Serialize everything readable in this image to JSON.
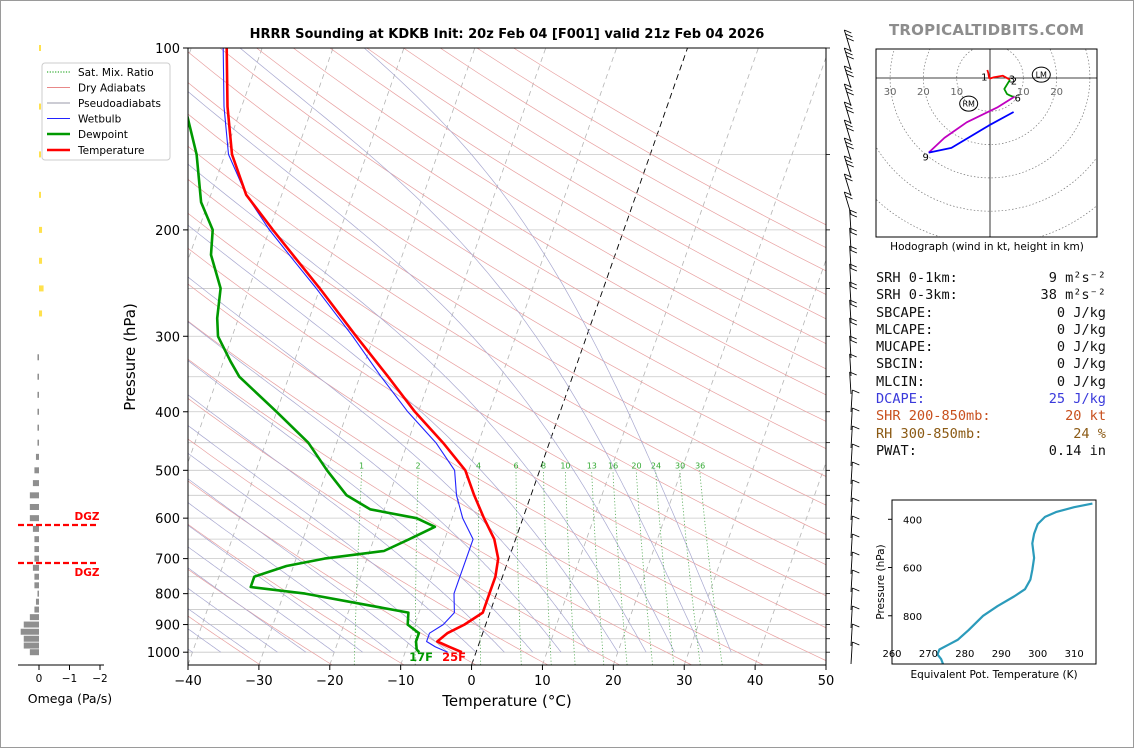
{
  "brand": "TROPICALTIDBITS.COM",
  "title": "HRRR Sounding at KDKB Init: 20z Feb 04 [F001] valid 21z Feb 04 2026",
  "skewt": {
    "xlabel": "Temperature (°C)",
    "ylabel": "Pressure (hPa)",
    "xticks": [
      "−40",
      "−30",
      "−20",
      "−10",
      "0",
      "10",
      "20",
      "30",
      "40",
      "50"
    ],
    "yticks": [
      "100",
      "200",
      "300",
      "400",
      "500",
      "600",
      "700",
      "800",
      "900",
      "1000"
    ],
    "legend": [
      "Sat. Mix. Ratio",
      "Dry Adiabats",
      "Pseudoadiabats",
      "Wetbulb",
      "Dewpoint",
      "Temperature"
    ],
    "mixing_ratio_labels": [
      "1",
      "2",
      "4",
      "6",
      "8",
      "10",
      "13",
      "16",
      "20",
      "24",
      "30",
      "36"
    ],
    "surface_temp_label": "25F",
    "surface_dewpoint_label": "17F"
  },
  "omega": {
    "xlabel": "Omega (Pa/s)",
    "xticks": [
      "0",
      "−1",
      "−2"
    ],
    "dgz_labels": [
      "DGZ",
      "DGZ"
    ]
  },
  "hodograph": {
    "caption": "Hodograph (wind in kt, height in km)",
    "ring_labels": [
      "30",
      "20",
      "10",
      "10",
      "20"
    ],
    "markers": [
      "LM",
      "RM"
    ],
    "height_labels": [
      "1",
      "2",
      "3",
      "6",
      "9"
    ]
  },
  "stats": [
    {
      "label": "SRH 0-1km:",
      "value": "9 m²s⁻²",
      "color": "#111111"
    },
    {
      "label": "SRH 0-3km:",
      "value": "38 m²s⁻²",
      "color": "#111111"
    },
    {
      "label": "SBCAPE:",
      "value": "0 J/kg",
      "color": "#111111"
    },
    {
      "label": "MLCAPE:",
      "value": "0 J/kg",
      "color": "#111111"
    },
    {
      "label": "MUCAPE:",
      "value": "0 J/kg",
      "color": "#111111"
    },
    {
      "label": "SBCIN:",
      "value": "0 J/kg",
      "color": "#111111"
    },
    {
      "label": "MLCIN:",
      "value": "0 J/kg",
      "color": "#111111"
    },
    {
      "label": "DCAPE:",
      "value": "25 J/kg",
      "color": "#3a3adb"
    },
    {
      "label": "SHR 200-850mb:",
      "value": "20 kt",
      "color": "#c8501e"
    },
    {
      "label": "RH 300-850mb:",
      "value": "24 %",
      "color": "#8b5a14"
    },
    {
      "label": "PWAT:",
      "value": "0.14 in",
      "color": "#111111"
    }
  ],
  "theta_e": {
    "ylabel": "Pressure (hPa)",
    "xlabel": "Equivalent Pot. Temperature (K)",
    "yticks": [
      "400",
      "600",
      "800"
    ],
    "xticks": [
      "260",
      "270",
      "280",
      "290",
      "300",
      "310"
    ]
  },
  "chart_data": [
    {
      "type": "line",
      "title": "HRRR Sounding at KDKB Init: 20z Feb 04 [F001] valid 21z Feb 04 2026",
      "xlabel": "Temperature (°C)",
      "ylabel": "Pressure (hPa)",
      "xlim": [
        -40,
        50
      ],
      "ylim": [
        1050,
        100
      ],
      "y_scale": "log",
      "skew": true,
      "grid": true,
      "legend_position": "top-left",
      "series": [
        {
          "name": "Temperature",
          "color": "#ff0000",
          "points": [
            [
              1000,
              -2
            ],
            [
              980,
              -4
            ],
            [
              960,
              -6
            ],
            [
              930,
              -5
            ],
            [
              900,
              -3
            ],
            [
              860,
              -1
            ],
            [
              800,
              -1
            ],
            [
              750,
              -1
            ],
            [
              700,
              -1.5
            ],
            [
              650,
              -3
            ],
            [
              600,
              -5.5
            ],
            [
              550,
              -8
            ],
            [
              500,
              -10.5
            ],
            [
              450,
              -15
            ],
            [
              400,
              -20.5
            ],
            [
              350,
              -26
            ],
            [
              300,
              -32.5
            ],
            [
              250,
              -40
            ],
            [
              225,
              -44.5
            ],
            [
              200,
              -49.5
            ],
            [
              175,
              -55
            ],
            [
              150,
              -59
            ],
            [
              125,
              -62
            ],
            [
              100,
              -65
            ]
          ]
        },
        {
          "name": "Dewpoint",
          "color": "#009900",
          "points": [
            [
              1000,
              -8
            ],
            [
              990,
              -8.5
            ],
            [
              960,
              -9
            ],
            [
              930,
              -9
            ],
            [
              900,
              -11
            ],
            [
              860,
              -11.5
            ],
            [
              800,
              -27
            ],
            [
              780,
              -35
            ],
            [
              750,
              -35
            ],
            [
              720,
              -31
            ],
            [
              700,
              -26
            ],
            [
              680,
              -18
            ],
            [
              650,
              -15
            ],
            [
              620,
              -12
            ],
            [
              600,
              -15
            ],
            [
              580,
              -22
            ],
            [
              550,
              -26
            ],
            [
              500,
              -30
            ],
            [
              450,
              -34
            ],
            [
              400,
              -40
            ],
            [
              350,
              -47
            ],
            [
              330,
              -49
            ],
            [
              300,
              -52
            ],
            [
              280,
              -53
            ],
            [
              250,
              -54
            ],
            [
              220,
              -57
            ],
            [
              200,
              -58
            ],
            [
              180,
              -61
            ],
            [
              150,
              -64
            ],
            [
              125,
              -68
            ],
            [
              100,
              -75
            ]
          ]
        },
        {
          "name": "Wetbulb",
          "color": "#2222ff",
          "points": [
            [
              1000,
              -4
            ],
            [
              980,
              -6
            ],
            [
              960,
              -7.5
            ],
            [
              930,
              -7.5
            ],
            [
              900,
              -6
            ],
            [
              860,
              -5
            ],
            [
              800,
              -6
            ],
            [
              750,
              -6
            ],
            [
              700,
              -6
            ],
            [
              650,
              -6
            ],
            [
              600,
              -8.5
            ],
            [
              550,
              -10.5
            ],
            [
              500,
              -12
            ],
            [
              450,
              -16
            ],
            [
              400,
              -21.5
            ],
            [
              350,
              -27
            ],
            [
              300,
              -33
            ],
            [
              250,
              -40.5
            ],
            [
              225,
              -45
            ],
            [
              200,
              -50
            ],
            [
              175,
              -55
            ],
            [
              150,
              -59.5
            ],
            [
              125,
              -62.5
            ],
            [
              100,
              -65.5
            ]
          ]
        }
      ]
    },
    {
      "type": "bar",
      "title": "",
      "xlabel": "Omega (Pa/s)",
      "ylabel": "",
      "xlim": [
        0.5,
        -2.5
      ],
      "orientation": "horizontal",
      "dgz_hPa": [
        620,
        715
      ],
      "upward_hPa": [
        100,
        125,
        150,
        175,
        200,
        225,
        250,
        275
      ],
      "downward_hPa": [
        325,
        350,
        375,
        400,
        425,
        450,
        475,
        500,
        525,
        550,
        575,
        600,
        625,
        650,
        675,
        700,
        725,
        750,
        775,
        800,
        825,
        850,
        875,
        900,
        925,
        950,
        975,
        1000
      ],
      "upward_values": [
        -0.05,
        -0.05,
        -0.05,
        -0.05,
        -0.1,
        -0.1,
        -0.15,
        -0.1
      ],
      "downward_values": [
        0.05,
        0.05,
        0.05,
        0.05,
        0.05,
        0.05,
        0.1,
        0.15,
        0.2,
        0.3,
        0.3,
        0.3,
        0.2,
        0.15,
        0.15,
        0.15,
        0.2,
        0.15,
        0.15,
        0.05,
        0.1,
        0.15,
        0.3,
        0.5,
        0.6,
        0.5,
        0.5,
        0.3
      ]
    },
    {
      "type": "line",
      "title": "Hodograph (wind in kt, height in km)",
      "xlabel": "",
      "ylabel": "",
      "xlim": [
        -32,
        25
      ],
      "ylim": [
        -21,
        11
      ],
      "series": [
        {
          "name": "0-1 km",
          "color": "#ff0000",
          "points": [
            [
              -0.8,
              2.4
            ],
            [
              -0.5,
              1.5
            ],
            [
              -0.2,
              -0.2
            ]
          ]
        },
        {
          "name": "1-3 km",
          "color": "#ff0000",
          "points": [
            [
              -0.2,
              -0.2
            ],
            [
              1.2,
              0.2
            ],
            [
              3.8,
              0.7
            ],
            [
              6.0,
              -0.5
            ]
          ]
        },
        {
          "name": "3-6 km",
          "color": "#009900",
          "points": [
            [
              6.0,
              -0.5
            ],
            [
              4.3,
              -3.3
            ],
            [
              5.1,
              -4.8
            ],
            [
              5.9,
              -5.2
            ],
            [
              6.8,
              -5.6
            ],
            [
              7.4,
              -5.6
            ]
          ]
        },
        {
          "name": "6-9 km",
          "color": "#c000c0",
          "points": [
            [
              7.4,
              -5.6
            ],
            [
              2.1,
              -8.9
            ],
            [
              -7.0,
              -13.3
            ],
            [
              -13.7,
              -18.0
            ],
            [
              -18.4,
              -22.4
            ]
          ]
        },
        {
          "name": "9+ km",
          "color": "#0000ff",
          "points": [
            [
              -18.4,
              -22.4
            ],
            [
              -11.6,
              -21.0
            ],
            [
              -0.4,
              -14.3
            ],
            [
              7.1,
              -10.2
            ]
          ]
        }
      ],
      "lm": [
        15.4,
        1.0
      ],
      "rm": [
        -6.4,
        -7.7
      ]
    },
    {
      "type": "line",
      "title": "",
      "xlabel": "Equivalent Pot. Temperature (K)",
      "ylabel": "Pressure (hPa)",
      "xlim": [
        260,
        316
      ],
      "ylim": [
        1000,
        320
      ],
      "series": [
        {
          "name": "Theta-e",
          "color": "#2b9bbb",
          "points": [
            [
              1000,
              274
            ],
            [
              980,
              273.5
            ],
            [
              960,
              272.5
            ],
            [
              940,
              273
            ],
            [
              920,
              275.5
            ],
            [
              900,
              278
            ],
            [
              860,
              281
            ],
            [
              800,
              285
            ],
            [
              760,
              289
            ],
            [
              720,
              293.5
            ],
            [
              690,
              296.5
            ],
            [
              650,
              298
            ],
            [
              610,
              298.5
            ],
            [
              560,
              299
            ],
            [
              500,
              298.5
            ],
            [
              460,
              299
            ],
            [
              420,
              300
            ],
            [
              390,
              302
            ],
            [
              370,
              305
            ],
            [
              350,
              310
            ],
            [
              335,
              315
            ]
          ]
        }
      ]
    }
  ]
}
